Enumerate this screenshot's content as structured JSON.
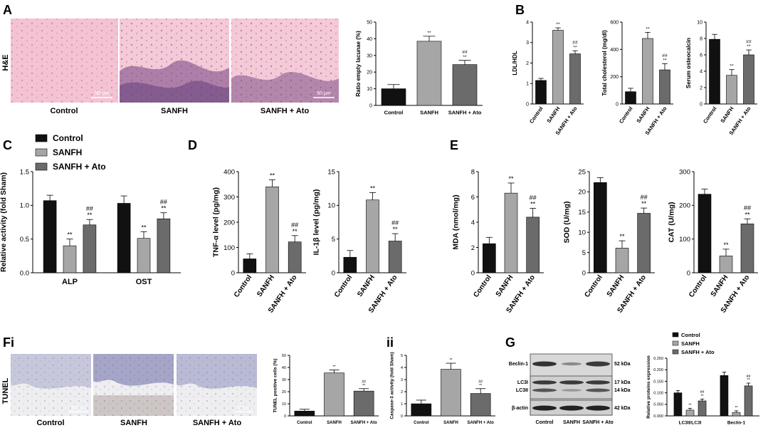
{
  "colors": {
    "control": "#111111",
    "sanfh": "#a6a6a6",
    "sanfh_ato": "#6b6b6b"
  },
  "panels": {
    "a": "A",
    "b": "B",
    "c": "C",
    "d": "D",
    "e": "E",
    "fi": "Fi",
    "fii": "ii",
    "g": "G"
  },
  "he": {
    "row_label": "H&E",
    "labels": [
      "Control",
      "SANFH",
      "SANFH + Ato"
    ],
    "scale_bar": "50 μm"
  },
  "tunel": {
    "row_label": "TUNEL",
    "labels": [
      "Control",
      "SANFH",
      "SANFH + Ato"
    ],
    "scale_bar": "50 μm"
  },
  "blot": {
    "proteins": [
      "Beclin-1",
      "LC3I",
      "LC3II",
      "β-actin"
    ],
    "kda": [
      "52 kDa",
      "17 kDa",
      "14 kDa",
      "42 kDa"
    ],
    "lanes": [
      "Control",
      "SANFH",
      "SANFH + Ato"
    ]
  },
  "legend_c": [
    "Control",
    "SANFH",
    "SANFH + Ato"
  ],
  "legend_g": [
    "Control",
    "SANFH",
    "SANFH + Ato"
  ],
  "chart_data": [
    {
      "id": "a_lacunae",
      "type": "bar",
      "categories": [
        "Control",
        "SANFH",
        "SANFH + Ato"
      ],
      "values": [
        10,
        38.5,
        24.5
      ],
      "errors": [
        2.5,
        3,
        2.5
      ],
      "annotations": [
        "",
        "**",
        "##\n**"
      ],
      "ylabel": "Ratio empty lacunae (%)",
      "ylim": [
        0,
        50
      ],
      "yticks": [
        0,
        10,
        20,
        30,
        40,
        50
      ]
    },
    {
      "id": "b_ldl",
      "type": "bar",
      "categories": [
        "Control",
        "SANFH",
        "SANFH + Ato"
      ],
      "values": [
        1.15,
        3.6,
        2.45
      ],
      "errors": [
        0.1,
        0.12,
        0.15
      ],
      "annotations": [
        "",
        "**",
        "##\n**"
      ],
      "ylabel": "LDL/HDL",
      "ylim": [
        0,
        4
      ],
      "yticks": [
        0,
        1,
        2,
        3,
        4
      ]
    },
    {
      "id": "b_chol",
      "type": "bar",
      "categories": [
        "Control",
        "SANFH",
        "SANFH + Ato"
      ],
      "values": [
        90,
        480,
        250
      ],
      "errors": [
        25,
        45,
        45
      ],
      "annotations": [
        "",
        "**",
        "##\n**"
      ],
      "ylabel": "Total cholesterol (mg/dl)",
      "ylim": [
        0,
        600
      ],
      "yticks": [
        0,
        200,
        400,
        600
      ]
    },
    {
      "id": "b_osteo",
      "type": "bar",
      "categories": [
        "Control",
        "SANFH",
        "SANFH + Ato"
      ],
      "values": [
        7.9,
        3.5,
        6
      ],
      "errors": [
        0.6,
        0.7,
        0.6
      ],
      "annotations": [
        "",
        "**",
        "##\n**"
      ],
      "ylabel": "Serum osteocalcin",
      "ylim": [
        0,
        10
      ],
      "yticks": [
        0,
        2,
        4,
        6,
        8,
        10
      ]
    },
    {
      "id": "c_activity",
      "type": "bar",
      "categories": [
        "ALP",
        "OST"
      ],
      "series": [
        {
          "name": "Control",
          "values": [
            1.07,
            1.03
          ],
          "errors": [
            0.08,
            0.11
          ]
        },
        {
          "name": "SANFH",
          "values": [
            0.4,
            0.51
          ],
          "errors": [
            0.1,
            0.1
          ]
        },
        {
          "name": "SANFH + Ato",
          "values": [
            0.71,
            0.8
          ],
          "errors": [
            0.08,
            0.09
          ]
        }
      ],
      "annotations": [
        [
          "",
          "**",
          "##\n**"
        ],
        [
          "",
          "**",
          "##\n**"
        ]
      ],
      "ylabel": "Relative activity (fold Sham)",
      "ylim": [
        0,
        1.5
      ],
      "yticks": [
        0,
        0.5,
        1.0,
        1.5
      ],
      "ytick_labels": [
        "0.0",
        "0.5",
        "1.0",
        "1.5"
      ],
      "legend": "top-left"
    },
    {
      "id": "d_tnf",
      "type": "bar",
      "categories": [
        "Control",
        "SANFH",
        "SANFH + Ato"
      ],
      "values": [
        55,
        340,
        122
      ],
      "errors": [
        20,
        28,
        25
      ],
      "annotations": [
        "",
        "**",
        "##\n**"
      ],
      "ylabel": "TNF-α level (pg/mg)",
      "ylim": [
        0,
        400
      ],
      "yticks": [
        0,
        100,
        200,
        300,
        400
      ]
    },
    {
      "id": "d_il1b",
      "type": "bar",
      "categories": [
        "Control",
        "SANFH",
        "SANFH + Ato"
      ],
      "values": [
        2.3,
        10.8,
        4.7
      ],
      "errors": [
        1,
        1.1,
        1.1
      ],
      "annotations": [
        "",
        "**",
        "##\n**"
      ],
      "ylabel": "IL-1β level (pg/mg)",
      "ylim": [
        0,
        15
      ],
      "yticks": [
        0,
        5,
        10,
        15
      ]
    },
    {
      "id": "e_mda",
      "type": "bar",
      "categories": [
        "Control",
        "SANFH",
        "SANFH + Ato"
      ],
      "values": [
        2.3,
        6.3,
        4.4
      ],
      "errors": [
        0.5,
        0.8,
        0.7
      ],
      "annotations": [
        "",
        "**",
        "##\n**"
      ],
      "ylabel": "MDA (nmol/mg)",
      "ylim": [
        0,
        8
      ],
      "yticks": [
        0,
        2,
        4,
        6,
        8
      ]
    },
    {
      "id": "e_sod",
      "type": "bar",
      "categories": [
        "Control",
        "SANFH",
        "SANFH + Ato"
      ],
      "values": [
        22.3,
        6.1,
        14.7
      ],
      "errors": [
        1.2,
        1.8,
        1.3
      ],
      "annotations": [
        "",
        "**",
        "##\n**"
      ],
      "ylabel": "SOD (U/mg)",
      "ylim": [
        0,
        25
      ],
      "yticks": [
        0,
        5,
        10,
        15,
        20,
        25
      ]
    },
    {
      "id": "e_cat",
      "type": "bar",
      "categories": [
        "Control",
        "SANFH",
        "SANFH + Ato"
      ],
      "values": [
        233,
        50,
        145
      ],
      "errors": [
        15,
        20,
        15
      ],
      "annotations": [
        "",
        "**",
        "##\n**"
      ],
      "ylabel": "CAT (U/mg)",
      "ylim": [
        0,
        300
      ],
      "yticks": [
        0,
        100,
        200,
        300
      ]
    },
    {
      "id": "f_tunel",
      "type": "bar",
      "categories": [
        "Control",
        "SANFH",
        "SANFH + Ato"
      ],
      "values": [
        4,
        35.5,
        20.5
      ],
      "errors": [
        1.5,
        2.5,
        2
      ],
      "annotations": [
        "",
        "**",
        "##\n**"
      ],
      "ylabel": "TUNEL positive cells (%)",
      "ylim": [
        0,
        50
      ],
      "yticks": [
        0,
        10,
        20,
        30,
        40,
        50
      ]
    },
    {
      "id": "f_casp",
      "type": "bar",
      "categories": [
        "Control",
        "SANFH",
        "SANFH + Ato"
      ],
      "values": [
        1,
        3.85,
        1.85
      ],
      "errors": [
        0.3,
        0.5,
        0.4
      ],
      "annotations": [
        "",
        "**",
        "##\n**"
      ],
      "ylabel": "Caspase-3 activity (fold Sham)",
      "ylim": [
        0,
        5
      ],
      "yticks": [
        0,
        1,
        2,
        3,
        4,
        5
      ]
    },
    {
      "id": "g_prot",
      "type": "bar",
      "categories": [
        "LC3II/LC3I",
        "Beclin-1"
      ],
      "series": [
        {
          "name": "Control",
          "values": [
            0.1,
            0.175
          ],
          "errors": [
            0.01,
            0.015
          ]
        },
        {
          "name": "SANFH",
          "values": [
            0.025,
            0.015
          ],
          "errors": [
            0.008,
            0.007
          ]
        },
        {
          "name": "SANFH + Ato",
          "values": [
            0.065,
            0.13
          ],
          "errors": [
            0.008,
            0.012
          ]
        }
      ],
      "annotations": [
        [
          "",
          "**",
          "##\n**"
        ],
        [
          "",
          "**",
          "##\n**"
        ]
      ],
      "ylabel": "Relative proteins expression",
      "ylim": [
        0,
        0.25
      ],
      "yticks": [
        0,
        0.05,
        0.1,
        0.15,
        0.2,
        0.25
      ],
      "ytick_labels": [
        "0.000",
        "0.050",
        "0.100",
        "0.150",
        "0.200",
        "0.250"
      ],
      "legend": "top"
    }
  ]
}
